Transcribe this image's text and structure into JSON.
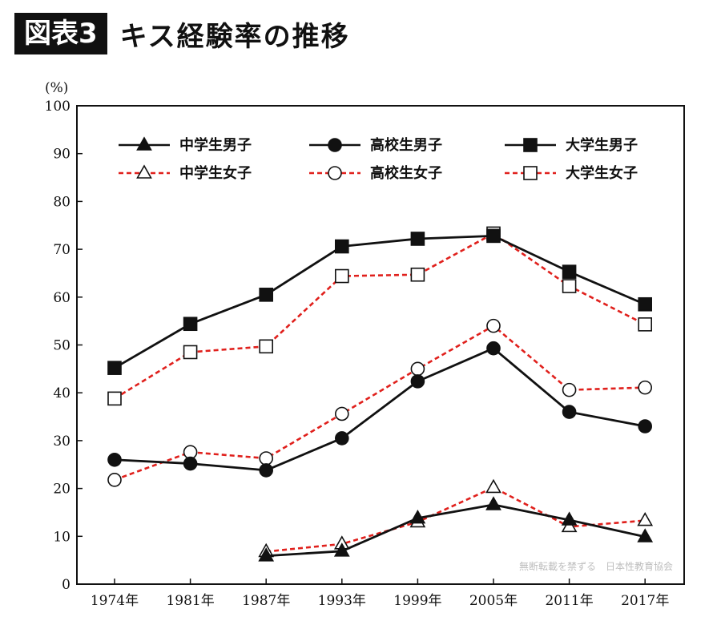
{
  "figure": {
    "badge": "図表3",
    "title": "キス経験率の推移"
  },
  "chart_data": {
    "type": "line",
    "ylabel": "(%)",
    "ylim": [
      0,
      100
    ],
    "yticks": [
      0,
      10,
      20,
      30,
      40,
      50,
      60,
      70,
      80,
      90,
      100
    ],
    "categories": [
      "1974年",
      "1981年",
      "1987年",
      "1993年",
      "1999年",
      "2005年",
      "2011年",
      "2017年"
    ],
    "grid": false,
    "legend_position": "top",
    "watermark": "無断転載を禁ずる　日本性教育協会",
    "series": [
      {
        "name": "中学生男子",
        "marker": "triangle",
        "filled": true,
        "dashed": false,
        "color": "#111111",
        "values": [
          null,
          null,
          5.9,
          6.9,
          13.8,
          16.6,
          13.4,
          9.9
        ]
      },
      {
        "name": "高校生男子",
        "marker": "circle",
        "filled": true,
        "dashed": false,
        "color": "#111111",
        "values": [
          26.0,
          25.2,
          23.8,
          30.5,
          42.4,
          49.3,
          36.0,
          33.0
        ]
      },
      {
        "name": "大学生男子",
        "marker": "square",
        "filled": true,
        "dashed": false,
        "color": "#111111",
        "values": [
          45.2,
          54.4,
          60.5,
          70.6,
          72.2,
          72.8,
          65.3,
          58.5
        ]
      },
      {
        "name": "中学生女子",
        "marker": "triangle",
        "filled": false,
        "dashed": true,
        "color": "#e0201c",
        "values": [
          null,
          null,
          6.8,
          8.4,
          13.0,
          20.2,
          12.0,
          13.3
        ]
      },
      {
        "name": "高校生女子",
        "marker": "circle",
        "filled": false,
        "dashed": true,
        "color": "#e0201c",
        "values": [
          21.8,
          27.6,
          26.3,
          35.6,
          45.0,
          54.0,
          40.6,
          41.1
        ]
      },
      {
        "name": "大学生女子",
        "marker": "square",
        "filled": false,
        "dashed": true,
        "color": "#e0201c",
        "values": [
          38.8,
          48.5,
          49.7,
          64.4,
          64.7,
          73.3,
          62.3,
          54.3
        ]
      }
    ]
  }
}
